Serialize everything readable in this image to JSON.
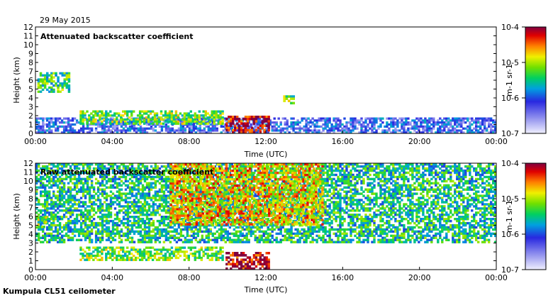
{
  "header": {
    "date": "29 May 2015"
  },
  "footer": {
    "instrument": "Kumpula CL51 ceilometer"
  },
  "chart_data": [
    {
      "type": "heatmap",
      "title": "Attenuated backscatter coefficient",
      "xlabel": "Time (UTC)",
      "ylabel": "Height (km)",
      "xlim": [
        0,
        24
      ],
      "ylim": [
        0,
        12
      ],
      "xticks": [
        "00:00",
        "04:00",
        "08:00",
        "12:00",
        "16:00",
        "20:00",
        "00:00"
      ],
      "yticks": [
        "0",
        "1",
        "2",
        "3",
        "4",
        "5",
        "6",
        "7",
        "8",
        "9",
        "10",
        "11",
        "12"
      ],
      "colorbar": {
        "scale": "log",
        "range": [
          1e-07,
          0.0001
        ],
        "ticks": [
          "10-7",
          "10-6",
          "10-5",
          "10-4"
        ],
        "unit": "m-1 sr-1"
      },
      "features": [
        {
          "name": "boundary layer",
          "t_start": 0,
          "t_end": 24,
          "top_km": 1.8,
          "level": 0.28
        },
        {
          "name": "cloud layer",
          "t_start": 2.3,
          "t_end": 9.8,
          "base_km": 1.0,
          "top_km": 2.6,
          "level": 0.6
        },
        {
          "name": "rain",
          "t_start": 9.9,
          "t_end": 12.2,
          "base_km": 0,
          "top_km": 2.0,
          "level": 0.97
        },
        {
          "name": "elevated cloud",
          "t_start": 0.1,
          "t_end": 1.8,
          "base_km": 4.6,
          "top_km": 6.9,
          "level": 0.55
        },
        {
          "name": "cloud patch",
          "t_start": 12.9,
          "t_end": 13.5,
          "base_km": 3.3,
          "top_km": 4.3,
          "level": 0.6
        }
      ]
    },
    {
      "type": "heatmap",
      "title": "Raw attenuated backscatter coefficient",
      "xlabel": "Time (UTC)",
      "ylabel": "Height (km)",
      "xlim": [
        0,
        24
      ],
      "ylim": [
        0,
        12
      ],
      "xticks": [
        "00:00",
        "04:00",
        "08:00",
        "12:00",
        "16:00",
        "20:00",
        "00:00"
      ],
      "yticks": [
        "0",
        "1",
        "2",
        "3",
        "4",
        "5",
        "6",
        "7",
        "8",
        "9",
        "10",
        "11",
        "12"
      ],
      "colorbar": {
        "scale": "log",
        "range": [
          1e-07,
          0.0001
        ],
        "ticks": [
          "10-7",
          "10-6",
          "10-5",
          "10-4"
        ],
        "unit": "m-1 sr-1"
      },
      "features": [
        {
          "name": "noise background",
          "t_start": 0,
          "t_end": 24,
          "base_km": 3,
          "top_km": 12,
          "level": 0.5
        },
        {
          "name": "noisy daytime",
          "t_start": 7,
          "t_end": 15,
          "base_km": 5,
          "top_km": 12,
          "level": 0.75
        },
        {
          "name": "cloud layer",
          "t_start": 2.3,
          "t_end": 9.8,
          "base_km": 1.0,
          "top_km": 2.6,
          "level": 0.6
        },
        {
          "name": "rain",
          "t_start": 9.9,
          "t_end": 12.2,
          "base_km": 0,
          "top_km": 2.0,
          "level": 0.97
        },
        {
          "name": "elevated cloud",
          "t_start": 0.1,
          "t_end": 0.6,
          "base_km": 4.7,
          "top_km": 6.0,
          "level": 0.6
        }
      ]
    }
  ]
}
